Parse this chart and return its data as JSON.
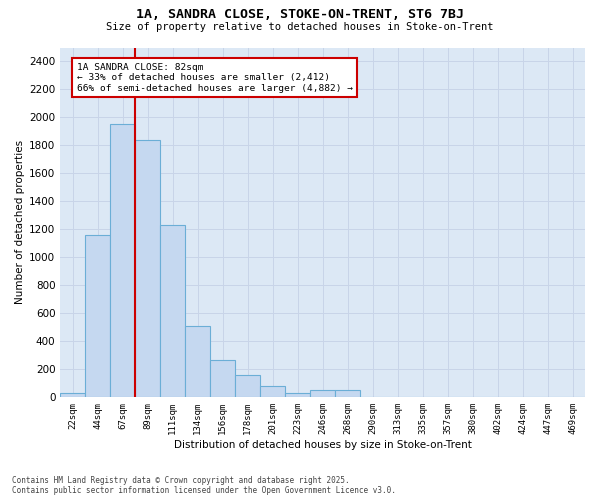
{
  "title_line1": "1A, SANDRA CLOSE, STOKE-ON-TRENT, ST6 7BJ",
  "title_line2": "Size of property relative to detached houses in Stoke-on-Trent",
  "xlabel": "Distribution of detached houses by size in Stoke-on-Trent",
  "ylabel": "Number of detached properties",
  "categories": [
    "22sqm",
    "44sqm",
    "67sqm",
    "89sqm",
    "111sqm",
    "134sqm",
    "156sqm",
    "178sqm",
    "201sqm",
    "223sqm",
    "246sqm",
    "268sqm",
    "290sqm",
    "313sqm",
    "335sqm",
    "357sqm",
    "380sqm",
    "402sqm",
    "424sqm",
    "447sqm",
    "469sqm"
  ],
  "values": [
    30,
    1160,
    1950,
    1840,
    1230,
    510,
    270,
    160,
    80,
    30,
    50,
    50,
    0,
    0,
    0,
    0,
    0,
    0,
    0,
    0,
    0
  ],
  "bar_color": "#c5d8f0",
  "bar_edge_color": "#6baed6",
  "red_line_index": 2.5,
  "annotation_text": "1A SANDRA CLOSE: 82sqm\n← 33% of detached houses are smaller (2,412)\n66% of semi-detached houses are larger (4,882) →",
  "annotation_box_color": "#ffffff",
  "annotation_box_edge": "#cc0000",
  "ylim": [
    0,
    2500
  ],
  "yticks": [
    0,
    200,
    400,
    600,
    800,
    1000,
    1200,
    1400,
    1600,
    1800,
    2000,
    2200,
    2400
  ],
  "grid_color": "#c8d4e8",
  "bg_color": "#dce8f5",
  "footer_line1": "Contains HM Land Registry data © Crown copyright and database right 2025.",
  "footer_line2": "Contains public sector information licensed under the Open Government Licence v3.0."
}
